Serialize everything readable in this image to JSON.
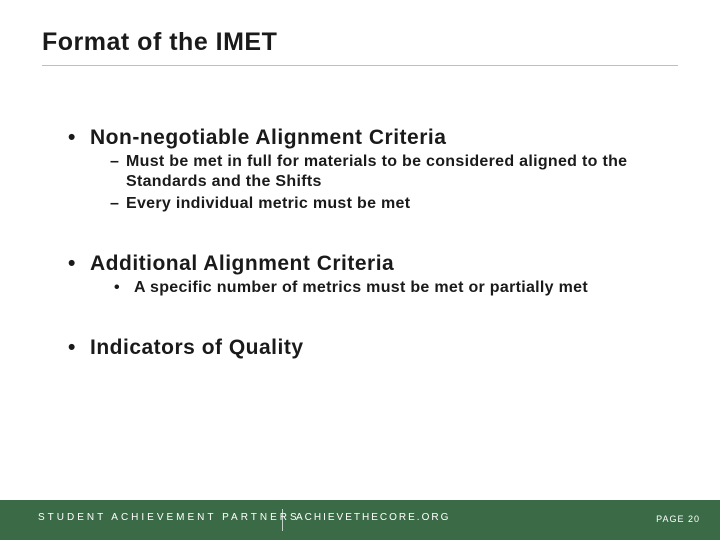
{
  "title": "Format of the IMET",
  "sections": [
    {
      "heading": "Non-negotiable Alignment Criteria",
      "sub_bullet_style": "dash",
      "subs": [
        "Must be met in full for materials to be considered aligned to the Standards and the Shifts",
        "Every individual metric must be met"
      ]
    },
    {
      "heading": "Additional Alignment Criteria",
      "sub_bullet_style": "dot",
      "subs": [
        "A specific number of metrics must be met or partially met"
      ]
    },
    {
      "heading": "Indicators of Quality",
      "sub_bullet_style": "dash",
      "subs": []
    }
  ],
  "footer": {
    "org_left": "STUDENT  ACHIEVEMENT  PARTNERS",
    "org_right": "ACHIEVETHECORE.ORG",
    "page_label": "PAGE 20"
  },
  "colors": {
    "footer_bg": "#3a6b46",
    "text": "#1a1a1a",
    "rule": "#bfbfbf",
    "footer_text": "#ffffff"
  }
}
